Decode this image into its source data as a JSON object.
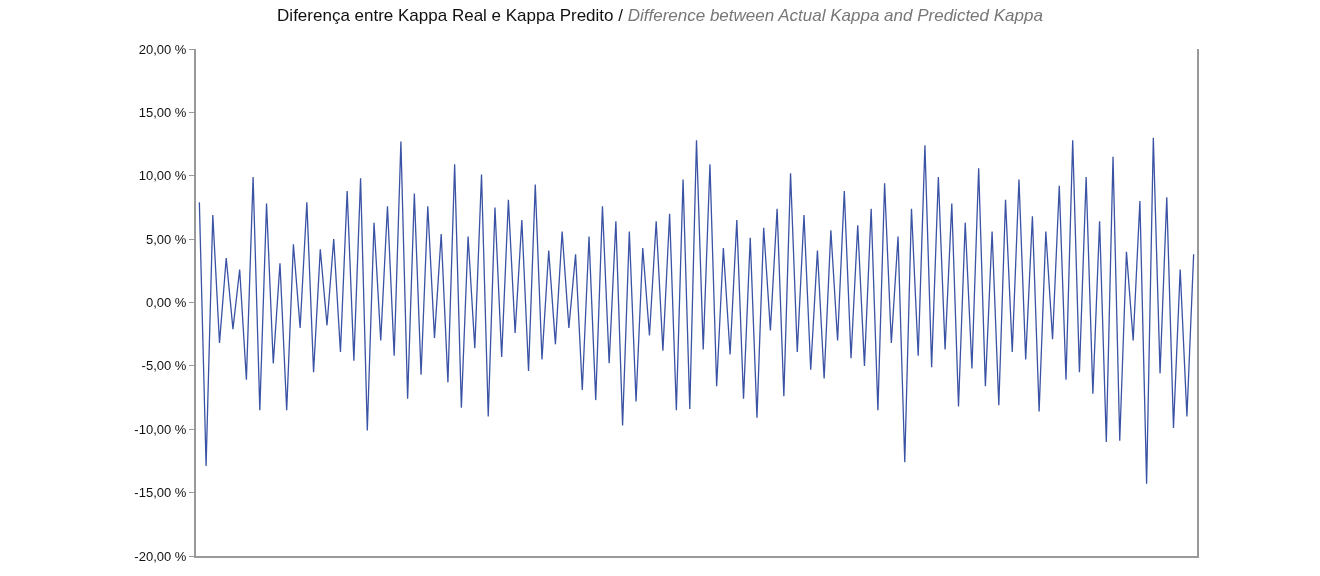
{
  "chart_data": {
    "type": "line",
    "title": "Diferença entre Kappa Real e Kappa Predito /",
    "subtitle": "Difference between Actual Kappa and Predicted Kappa",
    "categories": [
      null,
      null,
      null,
      null,
      null,
      null,
      null,
      null,
      null,
      null,
      null,
      null,
      null,
      null,
      null,
      null,
      null,
      null,
      null,
      null,
      null,
      null,
      null,
      null,
      null,
      null,
      null,
      null,
      null,
      null,
      null,
      null,
      null,
      null,
      null,
      null,
      null,
      null,
      null,
      null,
      null,
      null,
      null,
      null,
      null,
      null,
      null,
      null,
      null,
      null,
      null,
      null,
      null,
      null,
      null,
      null,
      null,
      null,
      null,
      null,
      null,
      null,
      null,
      null,
      null,
      null,
      null,
      null,
      null,
      null,
      null,
      null,
      null,
      null,
      null,
      null,
      null,
      null,
      null,
      null,
      null,
      null,
      null,
      null,
      null,
      null,
      null,
      null,
      null,
      null,
      null,
      null,
      null,
      null,
      null,
      null,
      null,
      null,
      null,
      null,
      null,
      null,
      null,
      null,
      null,
      null,
      null,
      null,
      null,
      null,
      null,
      null,
      null,
      null,
      null,
      null,
      null,
      null,
      null,
      null,
      null,
      null,
      null,
      null,
      null,
      null,
      null,
      null,
      null,
      null,
      null,
      null,
      null,
      null,
      null,
      null,
      null,
      null,
      null,
      null,
      null,
      null,
      null,
      null,
      null,
      null,
      null,
      null,
      null
    ],
    "series": [
      {
        "color": "#3a53a4",
        "values": [
          7.9,
          -12.9,
          6.9,
          -3.2,
          3.5,
          -2.1,
          2.6,
          -6.1,
          9.9,
          -8.5,
          7.8,
          -4.8,
          3.1,
          -8.5,
          4.6,
          -2.0,
          7.9,
          -5.5,
          4.2,
          -1.8,
          5.0,
          -3.9,
          8.8,
          -4.6,
          9.8,
          -10.1,
          6.3,
          -3.0,
          7.6,
          -4.2,
          12.7,
          -7.6,
          8.6,
          -5.7,
          7.6,
          -2.8,
          5.4,
          -6.3,
          10.9,
          -8.3,
          5.2,
          -3.6,
          10.1,
          -9.0,
          7.5,
          -4.3,
          8.1,
          -2.4,
          6.5,
          -5.4,
          9.3,
          -4.5,
          4.1,
          -3.3,
          5.6,
          -2.0,
          3.8,
          -6.9,
          5.2,
          -7.7,
          7.6,
          -4.8,
          6.4,
          -9.7,
          5.6,
          -7.8,
          4.3,
          -2.6,
          6.4,
          -3.8,
          7.0,
          -8.5,
          9.7,
          -8.4,
          12.8,
          -3.7,
          10.9,
          -6.6,
          4.3,
          -4.1,
          6.5,
          -7.6,
          5.1,
          -9.1,
          5.9,
          -2.2,
          7.4,
          -7.4,
          10.2,
          -3.9,
          6.9,
          -5.3,
          4.1,
          -6.0,
          5.7,
          -3.0,
          8.8,
          -4.4,
          6.1,
          -5.0,
          7.4,
          -8.5,
          9.4,
          -3.2,
          5.2,
          -12.6,
          7.4,
          -4.2,
          12.4,
          -5.1,
          9.9,
          -3.7,
          7.8,
          -8.2,
          6.3,
          -5.2,
          10.6,
          -6.6,
          5.6,
          -8.1,
          8.1,
          -3.9,
          9.7,
          -4.5,
          6.8,
          -8.6,
          5.6,
          -2.9,
          9.2,
          -6.1,
          12.8,
          -5.5,
          9.9,
          -7.2,
          6.4,
          -11.0,
          11.5,
          -10.9,
          4.0,
          -3.0,
          8.0,
          -14.3,
          13.0,
          -5.6,
          8.3,
          -9.9,
          2.6,
          -9.0,
          3.8
        ]
      }
    ],
    "ylim": [
      -20,
      20
    ],
    "yticks": [
      {
        "value": -20,
        "label": "-20,00 %"
      },
      {
        "value": -15,
        "label": "-15,00 %"
      },
      {
        "value": -10,
        "label": "-10,00 %"
      },
      {
        "value": -5,
        "label": "-5,00 %"
      },
      {
        "value": 0,
        "label": "0,00 %"
      },
      {
        "value": 5,
        "label": "5,00 %"
      },
      {
        "value": 10,
        "label": "10,00 %"
      },
      {
        "value": 15,
        "label": "15,00 %"
      },
      {
        "value": 20,
        "label": "20,00 %"
      }
    ],
    "tick_labels": "y",
    "grid": false,
    "marker": "none",
    "line_style": "solid"
  }
}
